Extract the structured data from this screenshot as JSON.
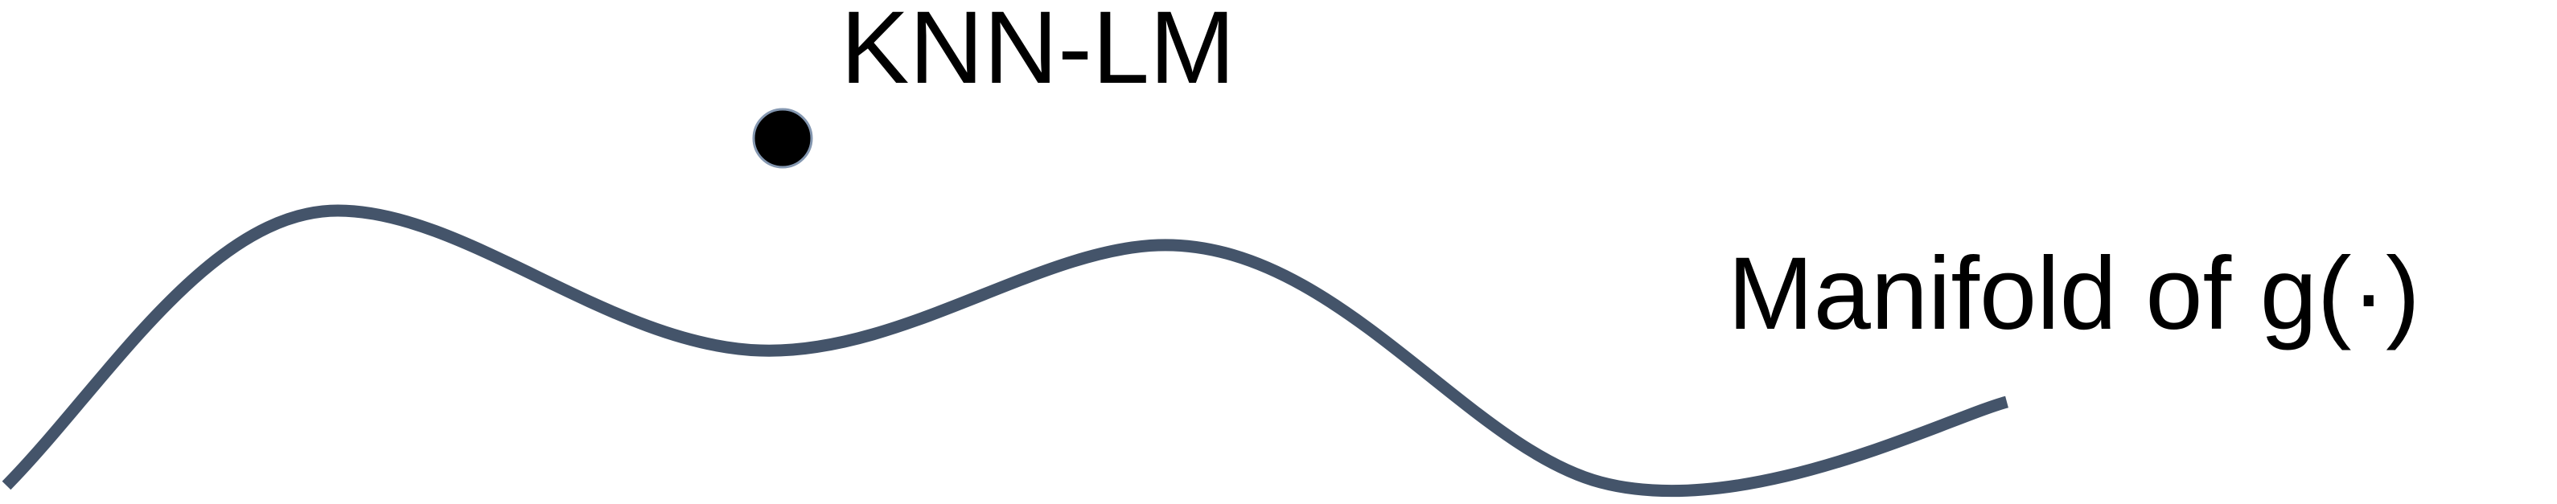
{
  "diagram": {
    "point_label": "KNN-LM",
    "curve_label": "Manifold of g(·)"
  },
  "colors": {
    "curve": "#44546a",
    "point_fill": "#000000",
    "point_stroke": "#8497b0",
    "text": "#000000",
    "background": "#ffffff"
  }
}
